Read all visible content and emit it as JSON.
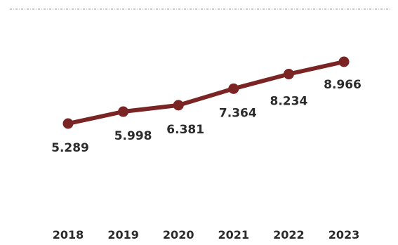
{
  "chart_data": {
    "type": "line",
    "categories": [
      "2018",
      "2019",
      "2020",
      "2021",
      "2022",
      "2023"
    ],
    "series": [
      {
        "values": [
          5.289,
          5.998,
          6.381,
          7.364,
          8.234,
          8.966
        ],
        "color": "#7b2424"
      }
    ],
    "data_labels": [
      "5.289",
      "5.998",
      "6.381",
      "7.364",
      "8.234",
      "8.966"
    ],
    "title": "",
    "xlabel": "",
    "ylabel": "",
    "grid": false,
    "legend": "none"
  }
}
